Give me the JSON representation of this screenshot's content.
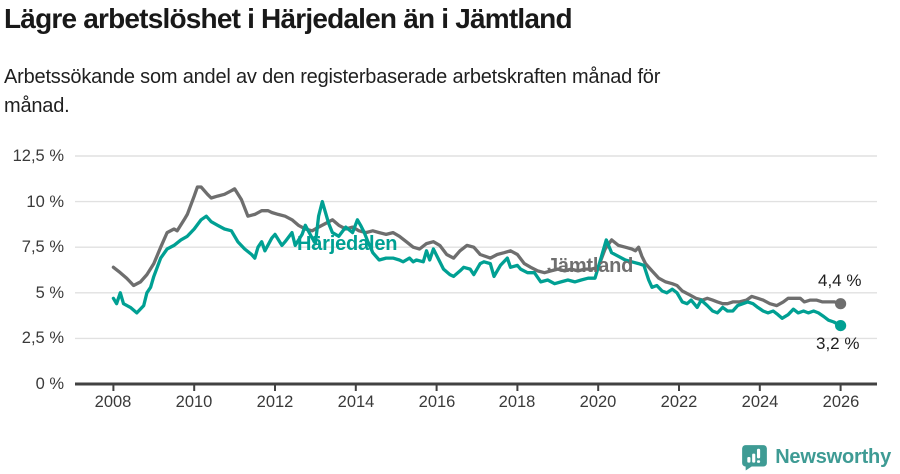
{
  "header": {
    "title": "Lägre arbetslöshet i Härjedalen än i Jämtland",
    "subtitle_line1": "Arbetssökande som andel av den registerbaserade arbetskraften månad för",
    "subtitle_line2": "månad."
  },
  "chart_data": {
    "type": "line",
    "title": "Lägre arbetslöshet i Härjedalen än i Jämtland",
    "subtitle": "Arbetssökande som andel av den registerbaserade arbetskraften månad för månad.",
    "grid": true,
    "legend_position": "inline-labels",
    "xlim": [
      2007.05,
      2026.9
    ],
    "ylim": [
      0,
      12.5
    ],
    "x_axis": {
      "ticks": [
        2008,
        2010,
        2012,
        2014,
        2016,
        2018,
        2020,
        2022,
        2024,
        2026
      ],
      "labels": [
        "2008",
        "2010",
        "2012",
        "2014",
        "2016",
        "2018",
        "2020",
        "2022",
        "2024",
        "2026"
      ]
    },
    "y_axis": {
      "ticks": [
        0,
        2.5,
        5,
        7.5,
        10,
        12.5
      ],
      "labels": [
        "0 %",
        "2,5 %",
        "5 %",
        "7,5 %",
        "10 %",
        "12,5 %"
      ]
    },
    "series": [
      {
        "name": "Jämtland",
        "color": "#6e6e6e",
        "end_label": "4,4 %",
        "end_value": 4.4,
        "points": [
          [
            2008.0,
            6.4
          ],
          [
            2008.17,
            6.1
          ],
          [
            2008.33,
            5.8
          ],
          [
            2008.5,
            5.4
          ],
          [
            2008.67,
            5.6
          ],
          [
            2008.83,
            6.0
          ],
          [
            2009.0,
            6.6
          ],
          [
            2009.17,
            7.5
          ],
          [
            2009.33,
            8.3
          ],
          [
            2009.5,
            8.5
          ],
          [
            2009.58,
            8.4
          ],
          [
            2009.75,
            9.0
          ],
          [
            2009.83,
            9.3
          ],
          [
            2010.0,
            10.3
          ],
          [
            2010.08,
            10.8
          ],
          [
            2010.17,
            10.8
          ],
          [
            2010.33,
            10.4
          ],
          [
            2010.42,
            10.2
          ],
          [
            2010.58,
            10.3
          ],
          [
            2010.75,
            10.4
          ],
          [
            2010.92,
            10.6
          ],
          [
            2011.0,
            10.7
          ],
          [
            2011.17,
            10.1
          ],
          [
            2011.33,
            9.2
          ],
          [
            2011.5,
            9.3
          ],
          [
            2011.67,
            9.5
          ],
          [
            2011.83,
            9.5
          ],
          [
            2011.92,
            9.4
          ],
          [
            2012.08,
            9.3
          ],
          [
            2012.25,
            9.2
          ],
          [
            2012.42,
            9.0
          ],
          [
            2012.58,
            8.7
          ],
          [
            2012.75,
            8.5
          ],
          [
            2012.92,
            8.4
          ],
          [
            2013.08,
            8.6
          ],
          [
            2013.25,
            8.8
          ],
          [
            2013.42,
            9.0
          ],
          [
            2013.58,
            8.7
          ],
          [
            2013.75,
            8.5
          ],
          [
            2013.92,
            8.6
          ],
          [
            2014.08,
            8.4
          ],
          [
            2014.25,
            8.3
          ],
          [
            2014.42,
            8.4
          ],
          [
            2014.58,
            8.3
          ],
          [
            2014.75,
            8.2
          ],
          [
            2014.92,
            8.3
          ],
          [
            2015.08,
            8.1
          ],
          [
            2015.25,
            7.8
          ],
          [
            2015.42,
            7.5
          ],
          [
            2015.58,
            7.4
          ],
          [
            2015.75,
            7.7
          ],
          [
            2015.92,
            7.8
          ],
          [
            2016.08,
            7.6
          ],
          [
            2016.25,
            7.1
          ],
          [
            2016.42,
            6.9
          ],
          [
            2016.58,
            7.3
          ],
          [
            2016.75,
            7.6
          ],
          [
            2016.92,
            7.5
          ],
          [
            2017.08,
            7.1
          ],
          [
            2017.33,
            6.9
          ],
          [
            2017.5,
            7.1
          ],
          [
            2017.67,
            7.2
          ],
          [
            2017.83,
            7.3
          ],
          [
            2018.0,
            7.1
          ],
          [
            2018.17,
            6.6
          ],
          [
            2018.33,
            6.4
          ],
          [
            2018.5,
            6.2
          ],
          [
            2018.67,
            6.1
          ],
          [
            2018.83,
            6.2
          ],
          [
            2019.0,
            6.3
          ],
          [
            2019.17,
            6.2
          ],
          [
            2019.33,
            6.3
          ],
          [
            2019.5,
            6.2
          ],
          [
            2019.67,
            6.3
          ],
          [
            2019.83,
            6.3
          ],
          [
            2020.0,
            6.4
          ],
          [
            2020.17,
            7.4
          ],
          [
            2020.33,
            7.9
          ],
          [
            2020.5,
            7.6
          ],
          [
            2020.67,
            7.5
          ],
          [
            2020.83,
            7.4
          ],
          [
            2020.92,
            7.3
          ],
          [
            2021.0,
            7.5
          ],
          [
            2021.08,
            7.0
          ],
          [
            2021.17,
            6.6
          ],
          [
            2021.33,
            6.2
          ],
          [
            2021.5,
            5.8
          ],
          [
            2021.67,
            5.6
          ],
          [
            2021.83,
            5.5
          ],
          [
            2021.95,
            5.4
          ],
          [
            2022.08,
            5.1
          ],
          [
            2022.25,
            4.9
          ],
          [
            2022.42,
            4.7
          ],
          [
            2022.58,
            4.6
          ],
          [
            2022.7,
            4.7
          ],
          [
            2022.83,
            4.6
          ],
          [
            2022.95,
            4.5
          ],
          [
            2023.08,
            4.4
          ],
          [
            2023.2,
            4.4
          ],
          [
            2023.33,
            4.5
          ],
          [
            2023.5,
            4.5
          ],
          [
            2023.67,
            4.6
          ],
          [
            2023.8,
            4.8
          ],
          [
            2023.95,
            4.7
          ],
          [
            2024.08,
            4.6
          ],
          [
            2024.25,
            4.4
          ],
          [
            2024.42,
            4.3
          ],
          [
            2024.58,
            4.5
          ],
          [
            2024.7,
            4.7
          ],
          [
            2024.85,
            4.7
          ],
          [
            2025.0,
            4.7
          ],
          [
            2025.1,
            4.5
          ],
          [
            2025.25,
            4.6
          ],
          [
            2025.4,
            4.6
          ],
          [
            2025.55,
            4.5
          ],
          [
            2025.7,
            4.5
          ],
          [
            2025.85,
            4.5
          ],
          [
            2026.0,
            4.4
          ]
        ]
      },
      {
        "name": "Härjedalen",
        "color": "#00a093",
        "end_label": "3,2 %",
        "end_value": 3.2,
        "points": [
          [
            2008.0,
            4.7
          ],
          [
            2008.08,
            4.4
          ],
          [
            2008.17,
            5.0
          ],
          [
            2008.25,
            4.4
          ],
          [
            2008.42,
            4.2
          ],
          [
            2008.58,
            3.9
          ],
          [
            2008.75,
            4.3
          ],
          [
            2008.83,
            5.0
          ],
          [
            2008.92,
            5.3
          ],
          [
            2009.0,
            5.9
          ],
          [
            2009.17,
            6.9
          ],
          [
            2009.33,
            7.4
          ],
          [
            2009.5,
            7.6
          ],
          [
            2009.67,
            7.9
          ],
          [
            2009.83,
            8.1
          ],
          [
            2010.0,
            8.5
          ],
          [
            2010.17,
            9.0
          ],
          [
            2010.3,
            9.2
          ],
          [
            2010.42,
            8.9
          ],
          [
            2010.58,
            8.7
          ],
          [
            2010.75,
            8.5
          ],
          [
            2010.92,
            8.4
          ],
          [
            2011.08,
            7.8
          ],
          [
            2011.25,
            7.4
          ],
          [
            2011.42,
            7.1
          ],
          [
            2011.5,
            6.9
          ],
          [
            2011.58,
            7.5
          ],
          [
            2011.67,
            7.8
          ],
          [
            2011.75,
            7.3
          ],
          [
            2011.92,
            8.0
          ],
          [
            2012.0,
            8.2
          ],
          [
            2012.17,
            7.6
          ],
          [
            2012.25,
            7.8
          ],
          [
            2012.42,
            8.3
          ],
          [
            2012.5,
            7.6
          ],
          [
            2012.67,
            8.2
          ],
          [
            2012.75,
            8.7
          ],
          [
            2012.92,
            8.0
          ],
          [
            2013.0,
            7.7
          ],
          [
            2013.08,
            9.2
          ],
          [
            2013.17,
            10.0
          ],
          [
            2013.33,
            8.8
          ],
          [
            2013.42,
            8.3
          ],
          [
            2013.58,
            8.1
          ],
          [
            2013.75,
            8.6
          ],
          [
            2013.92,
            8.3
          ],
          [
            2014.04,
            9.0
          ],
          [
            2014.12,
            8.7
          ],
          [
            2014.21,
            8.3
          ],
          [
            2014.3,
            7.8
          ],
          [
            2014.42,
            7.2
          ],
          [
            2014.58,
            6.8
          ],
          [
            2014.75,
            6.9
          ],
          [
            2014.92,
            6.9
          ],
          [
            2015.08,
            6.8
          ],
          [
            2015.17,
            6.7
          ],
          [
            2015.33,
            6.9
          ],
          [
            2015.42,
            6.7
          ],
          [
            2015.5,
            6.8
          ],
          [
            2015.67,
            6.7
          ],
          [
            2015.75,
            7.3
          ],
          [
            2015.83,
            6.8
          ],
          [
            2015.92,
            7.4
          ],
          [
            2016.08,
            6.7
          ],
          [
            2016.17,
            6.3
          ],
          [
            2016.33,
            6.0
          ],
          [
            2016.42,
            5.9
          ],
          [
            2016.58,
            6.2
          ],
          [
            2016.67,
            6.4
          ],
          [
            2016.83,
            6.3
          ],
          [
            2016.92,
            6.0
          ],
          [
            2017.08,
            6.6
          ],
          [
            2017.17,
            6.7
          ],
          [
            2017.33,
            6.6
          ],
          [
            2017.42,
            5.9
          ],
          [
            2017.58,
            6.5
          ],
          [
            2017.75,
            6.9
          ],
          [
            2017.83,
            6.4
          ],
          [
            2018.0,
            6.5
          ],
          [
            2018.08,
            6.3
          ],
          [
            2018.25,
            6.1
          ],
          [
            2018.42,
            6.1
          ],
          [
            2018.58,
            5.6
          ],
          [
            2018.75,
            5.7
          ],
          [
            2018.92,
            5.5
          ],
          [
            2019.08,
            5.6
          ],
          [
            2019.25,
            5.7
          ],
          [
            2019.42,
            5.6
          ],
          [
            2019.58,
            5.7
          ],
          [
            2019.75,
            5.8
          ],
          [
            2019.92,
            5.8
          ],
          [
            2020.08,
            7.0
          ],
          [
            2020.2,
            7.9
          ],
          [
            2020.33,
            7.2
          ],
          [
            2020.5,
            7.0
          ],
          [
            2020.67,
            6.8
          ],
          [
            2020.83,
            6.7
          ],
          [
            2021.0,
            6.6
          ],
          [
            2021.13,
            6.5
          ],
          [
            2021.25,
            5.7
          ],
          [
            2021.33,
            5.3
          ],
          [
            2021.45,
            5.4
          ],
          [
            2021.58,
            5.1
          ],
          [
            2021.7,
            5.0
          ],
          [
            2021.83,
            5.2
          ],
          [
            2021.95,
            5.0
          ],
          [
            2022.08,
            4.5
          ],
          [
            2022.2,
            4.4
          ],
          [
            2022.3,
            4.6
          ],
          [
            2022.45,
            4.2
          ],
          [
            2022.55,
            4.6
          ],
          [
            2022.7,
            4.3
          ],
          [
            2022.83,
            4.0
          ],
          [
            2022.95,
            3.9
          ],
          [
            2023.08,
            4.2
          ],
          [
            2023.2,
            4.0
          ],
          [
            2023.33,
            4.0
          ],
          [
            2023.45,
            4.3
          ],
          [
            2023.58,
            4.4
          ],
          [
            2023.7,
            4.5
          ],
          [
            2023.83,
            4.4
          ],
          [
            2023.95,
            4.2
          ],
          [
            2024.08,
            4.0
          ],
          [
            2024.2,
            3.9
          ],
          [
            2024.33,
            4.0
          ],
          [
            2024.45,
            3.8
          ],
          [
            2024.55,
            3.6
          ],
          [
            2024.7,
            3.8
          ],
          [
            2024.83,
            4.1
          ],
          [
            2024.95,
            3.9
          ],
          [
            2025.08,
            4.0
          ],
          [
            2025.2,
            3.9
          ],
          [
            2025.33,
            4.0
          ],
          [
            2025.45,
            3.9
          ],
          [
            2025.58,
            3.7
          ],
          [
            2025.7,
            3.5
          ],
          [
            2025.83,
            3.4
          ],
          [
            2026.0,
            3.2
          ]
        ]
      }
    ]
  },
  "annotations": {
    "harjedalen_label": "Härjedalen",
    "jamtland_label": "Jämtland",
    "jamtland_end_value": "4,4 %",
    "harjedalen_end_value": "3,2 %"
  },
  "footer": {
    "brand": "Newsworthy",
    "brand_color": "#3e9b94",
    "icon": "bar-chart-speech-bubble-icon"
  },
  "colors": {
    "harjedalen": "#00a093",
    "jamtland": "#6e6e6e",
    "gridline": "#e1e1e1",
    "axis": "#414141"
  }
}
